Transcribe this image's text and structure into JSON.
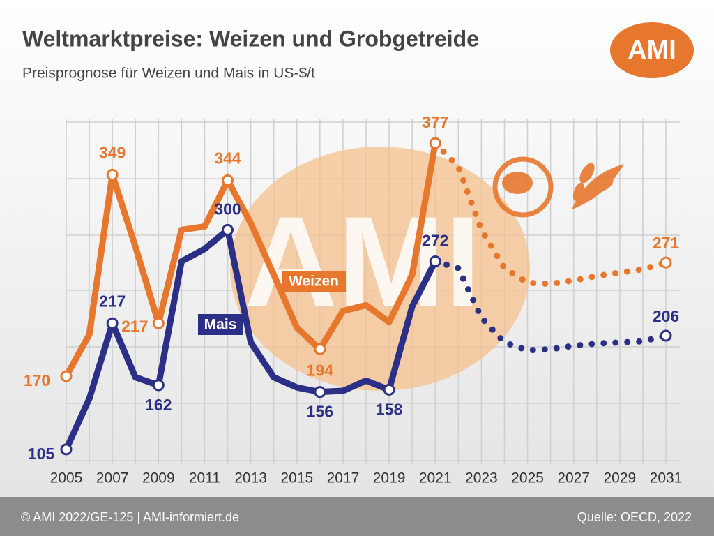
{
  "chart_data": {
    "type": "line",
    "title": "Weltmarktpreise: Weizen und Grobgetreide",
    "subtitle": "Preisprognose für Weizen und Mais in US-$/t",
    "logo": "AMI",
    "watermark": "AMI",
    "footer_left": "© AMI 2022/GE-125 | AMI-informiert.de",
    "footer_right": "Quelle: OECD, 2022",
    "x": [
      2005,
      2006,
      2007,
      2008,
      2009,
      2010,
      2011,
      2012,
      2013,
      2014,
      2015,
      2016,
      2017,
      2018,
      2019,
      2020,
      2021,
      2022,
      2023,
      2024,
      2025,
      2026,
      2027,
      2028,
      2029,
      2030,
      2031
    ],
    "xlim": [
      2005,
      2031
    ],
    "xticks": [
      2005,
      2007,
      2009,
      2011,
      2013,
      2015,
      2017,
      2019,
      2021,
      2023,
      2025,
      2027,
      2029,
      2031
    ],
    "ylim": [
      95,
      405
    ],
    "dotted_from": 2021,
    "series": [
      {
        "name": "Weizen",
        "color": "#e8772e",
        "values": [
          170,
          207,
          349,
          285,
          217,
          300,
          303,
          344,
          306,
          260,
          213,
          194,
          228,
          233,
          218,
          260,
          377,
          356,
          300,
          266,
          253,
          252,
          255,
          259,
          262,
          265,
          271
        ],
        "value_labels": [
          "170",
          null,
          "349",
          null,
          "217",
          null,
          null,
          "344",
          null,
          null,
          null,
          "194",
          null,
          null,
          null,
          null,
          "377",
          null,
          null,
          null,
          null,
          null,
          null,
          null,
          null,
          null,
          "271"
        ]
      },
      {
        "name": "Mais",
        "color": "#2b2f86",
        "values": [
          105,
          150,
          217,
          169,
          162,
          272,
          283,
          300,
          200,
          169,
          160,
          156,
          157,
          166,
          158,
          232,
          272,
          266,
          222,
          200,
          193,
          194,
          197,
          199,
          200,
          201,
          206
        ],
        "value_labels": [
          "105",
          null,
          "217",
          null,
          "162",
          null,
          null,
          "300",
          null,
          null,
          null,
          "156",
          null,
          null,
          "158",
          null,
          "272",
          null,
          null,
          null,
          null,
          null,
          null,
          null,
          null,
          null,
          "206"
        ]
      }
    ]
  }
}
